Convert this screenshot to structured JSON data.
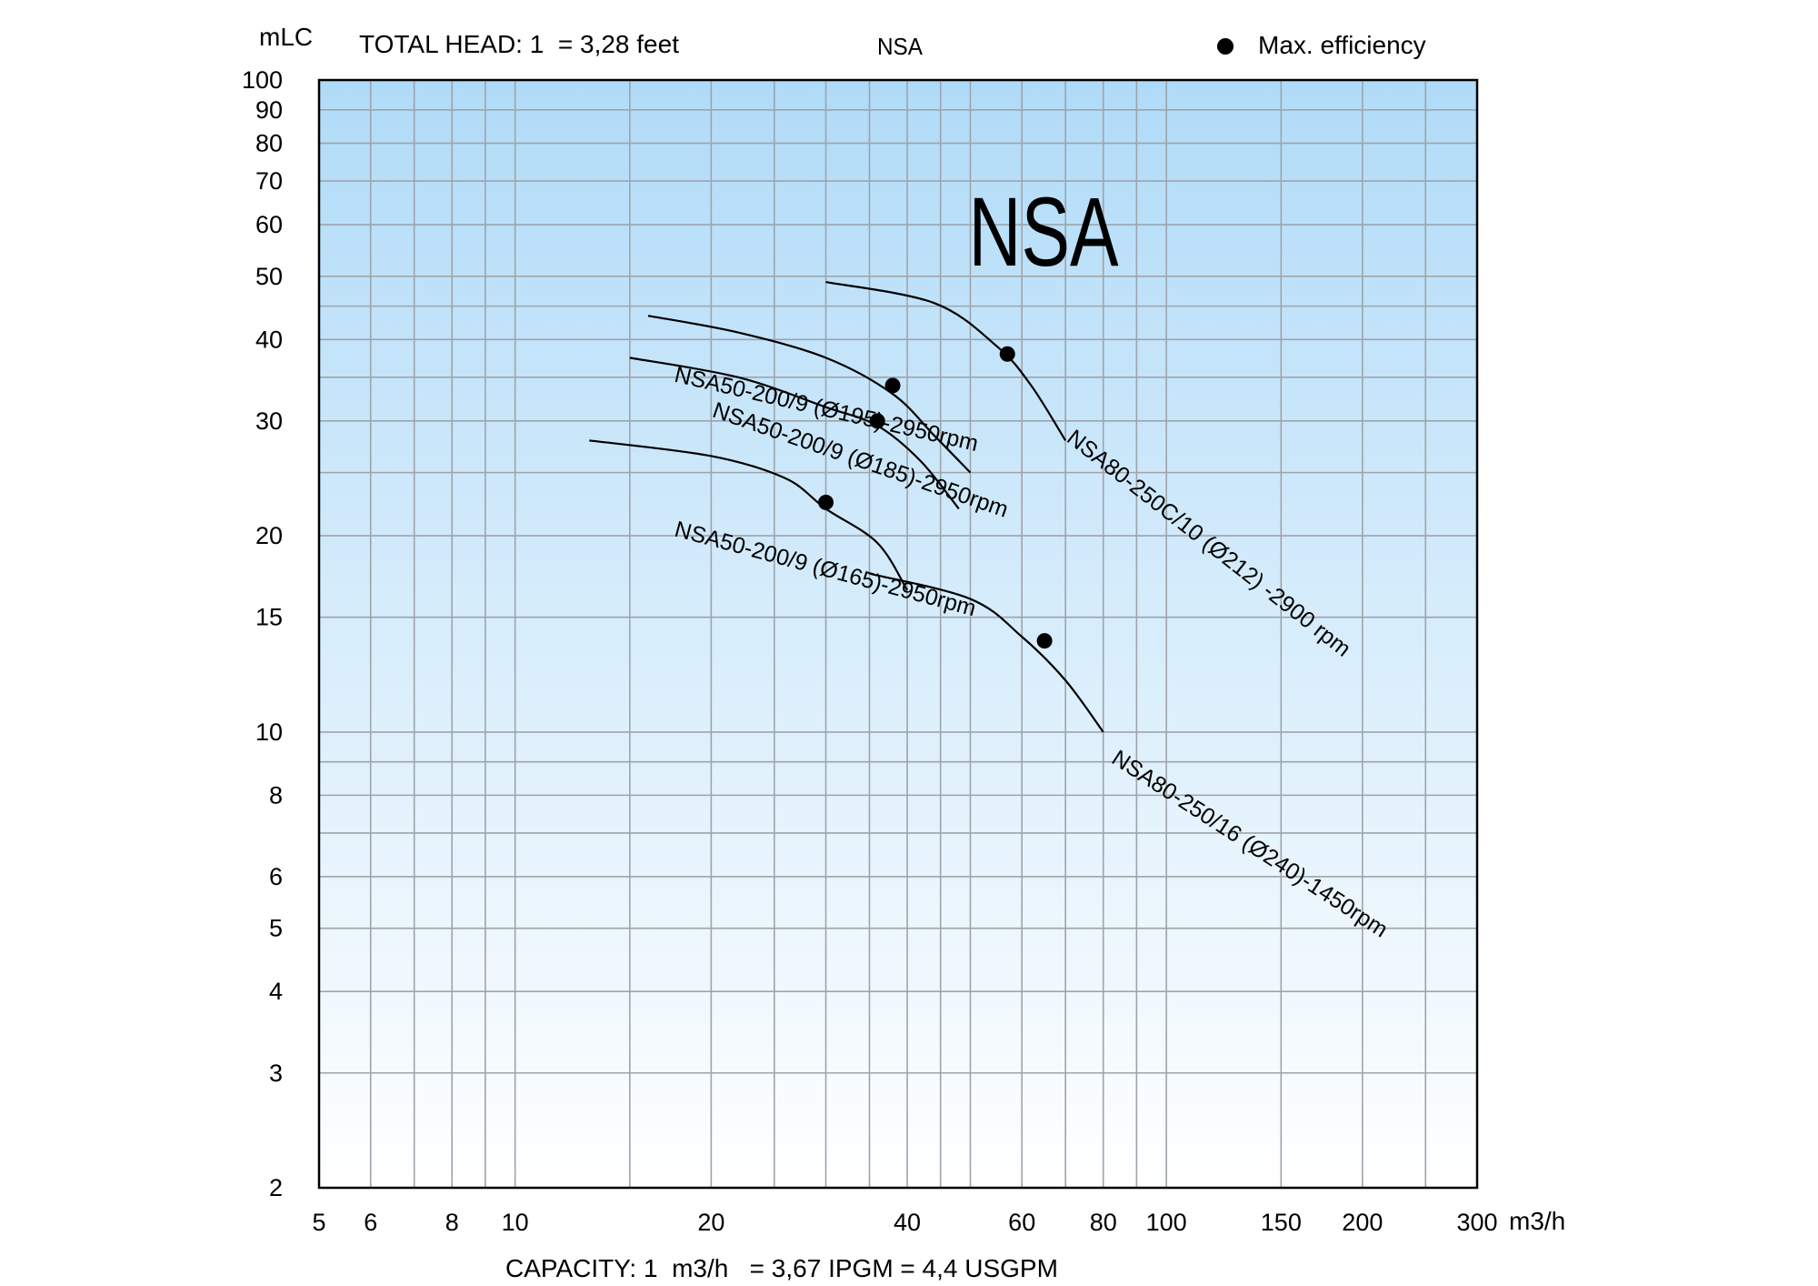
{
  "chart_data": {
    "type": "line",
    "title": "NSA",
    "watermark_title": "NSA",
    "ylabel": "mLC",
    "xlabel": "m3/h",
    "head_note": "TOTAL HEAD: 1  = 3,28 feet",
    "capacity_note": "CAPACITY: 1  m3/h   = 3,67 IPGM = 4,4 USGPM",
    "legend": {
      "label": "Max. efficiency",
      "placement": "top-right"
    },
    "x_scale": "log",
    "y_scale": "log",
    "xlim": [
      5,
      300
    ],
    "ylim": [
      2,
      100
    ],
    "x_ticks": [
      5,
      6,
      8,
      10,
      20,
      40,
      60,
      80,
      100,
      150,
      200,
      300
    ],
    "y_ticks": [
      2,
      3,
      4,
      5,
      6,
      8,
      10,
      15,
      20,
      30,
      40,
      50,
      60,
      70,
      80,
      90,
      100
    ],
    "x_gridlines": [
      5,
      6,
      7,
      8,
      9,
      10,
      15,
      20,
      25,
      30,
      35,
      40,
      45,
      50,
      60,
      70,
      80,
      90,
      100,
      150,
      200,
      250,
      300
    ],
    "y_gridlines": [
      2,
      3,
      4,
      5,
      6,
      7,
      8,
      9,
      10,
      15,
      20,
      25,
      30,
      35,
      40,
      45,
      50,
      60,
      70,
      80,
      90,
      100
    ],
    "grid": true,
    "background_gradient": {
      "top": "#b0dbf8",
      "bottom": "#ffffff"
    },
    "series": [
      {
        "name": "NSA50-200/9 (Ø195)-2950rpm",
        "points": [
          [
            16,
            43.5
          ],
          [
            22,
            41
          ],
          [
            30,
            37.5
          ],
          [
            38,
            33
          ],
          [
            44,
            28.5
          ],
          [
            50,
            25
          ]
        ],
        "max_efficiency": [
          38,
          34
        ],
        "label_anchor": [
          17.5,
          34.5
        ],
        "label_angle": 13
      },
      {
        "name": "NSA50-200/9 (Ø185)-2950rpm",
        "points": [
          [
            15,
            37.5
          ],
          [
            22,
            35
          ],
          [
            30,
            31.5
          ],
          [
            36,
            29.5
          ],
          [
            42,
            26
          ],
          [
            48,
            22
          ]
        ],
        "max_efficiency": [
          36,
          30
        ],
        "label_anchor": [
          20,
          30.5
        ],
        "label_angle": 19
      },
      {
        "name": "NSA50-200/9 (Ø165)-2950rpm",
        "points": [
          [
            13,
            28
          ],
          [
            20,
            26.5
          ],
          [
            26,
            24.5
          ],
          [
            30,
            22
          ],
          [
            36,
            19.5
          ],
          [
            40,
            16.5
          ]
        ],
        "max_efficiency": [
          30,
          22.5
        ],
        "label_anchor": [
          17.5,
          20
        ],
        "label_angle": 15
      },
      {
        "name": "NSA80-250C/10 (Ø212) -2900 rpm",
        "points": [
          [
            30,
            49
          ],
          [
            44,
            45.5
          ],
          [
            55,
            39
          ],
          [
            62,
            34
          ],
          [
            70,
            28
          ]
        ],
        "max_efficiency": [
          57,
          38
        ],
        "label_anchor": [
          70,
          28
        ],
        "label_angle": 38
      },
      {
        "name": "NSA80-250/16 (Ø240)-1450rpm",
        "points": [
          [
            35,
            17.5
          ],
          [
            50,
            16
          ],
          [
            60,
            14
          ],
          [
            70,
            12
          ],
          [
            80,
            10
          ]
        ],
        "max_efficiency": [
          65,
          13.8
        ],
        "label_anchor": [
          82,
          9
        ],
        "label_angle": 33
      }
    ]
  }
}
